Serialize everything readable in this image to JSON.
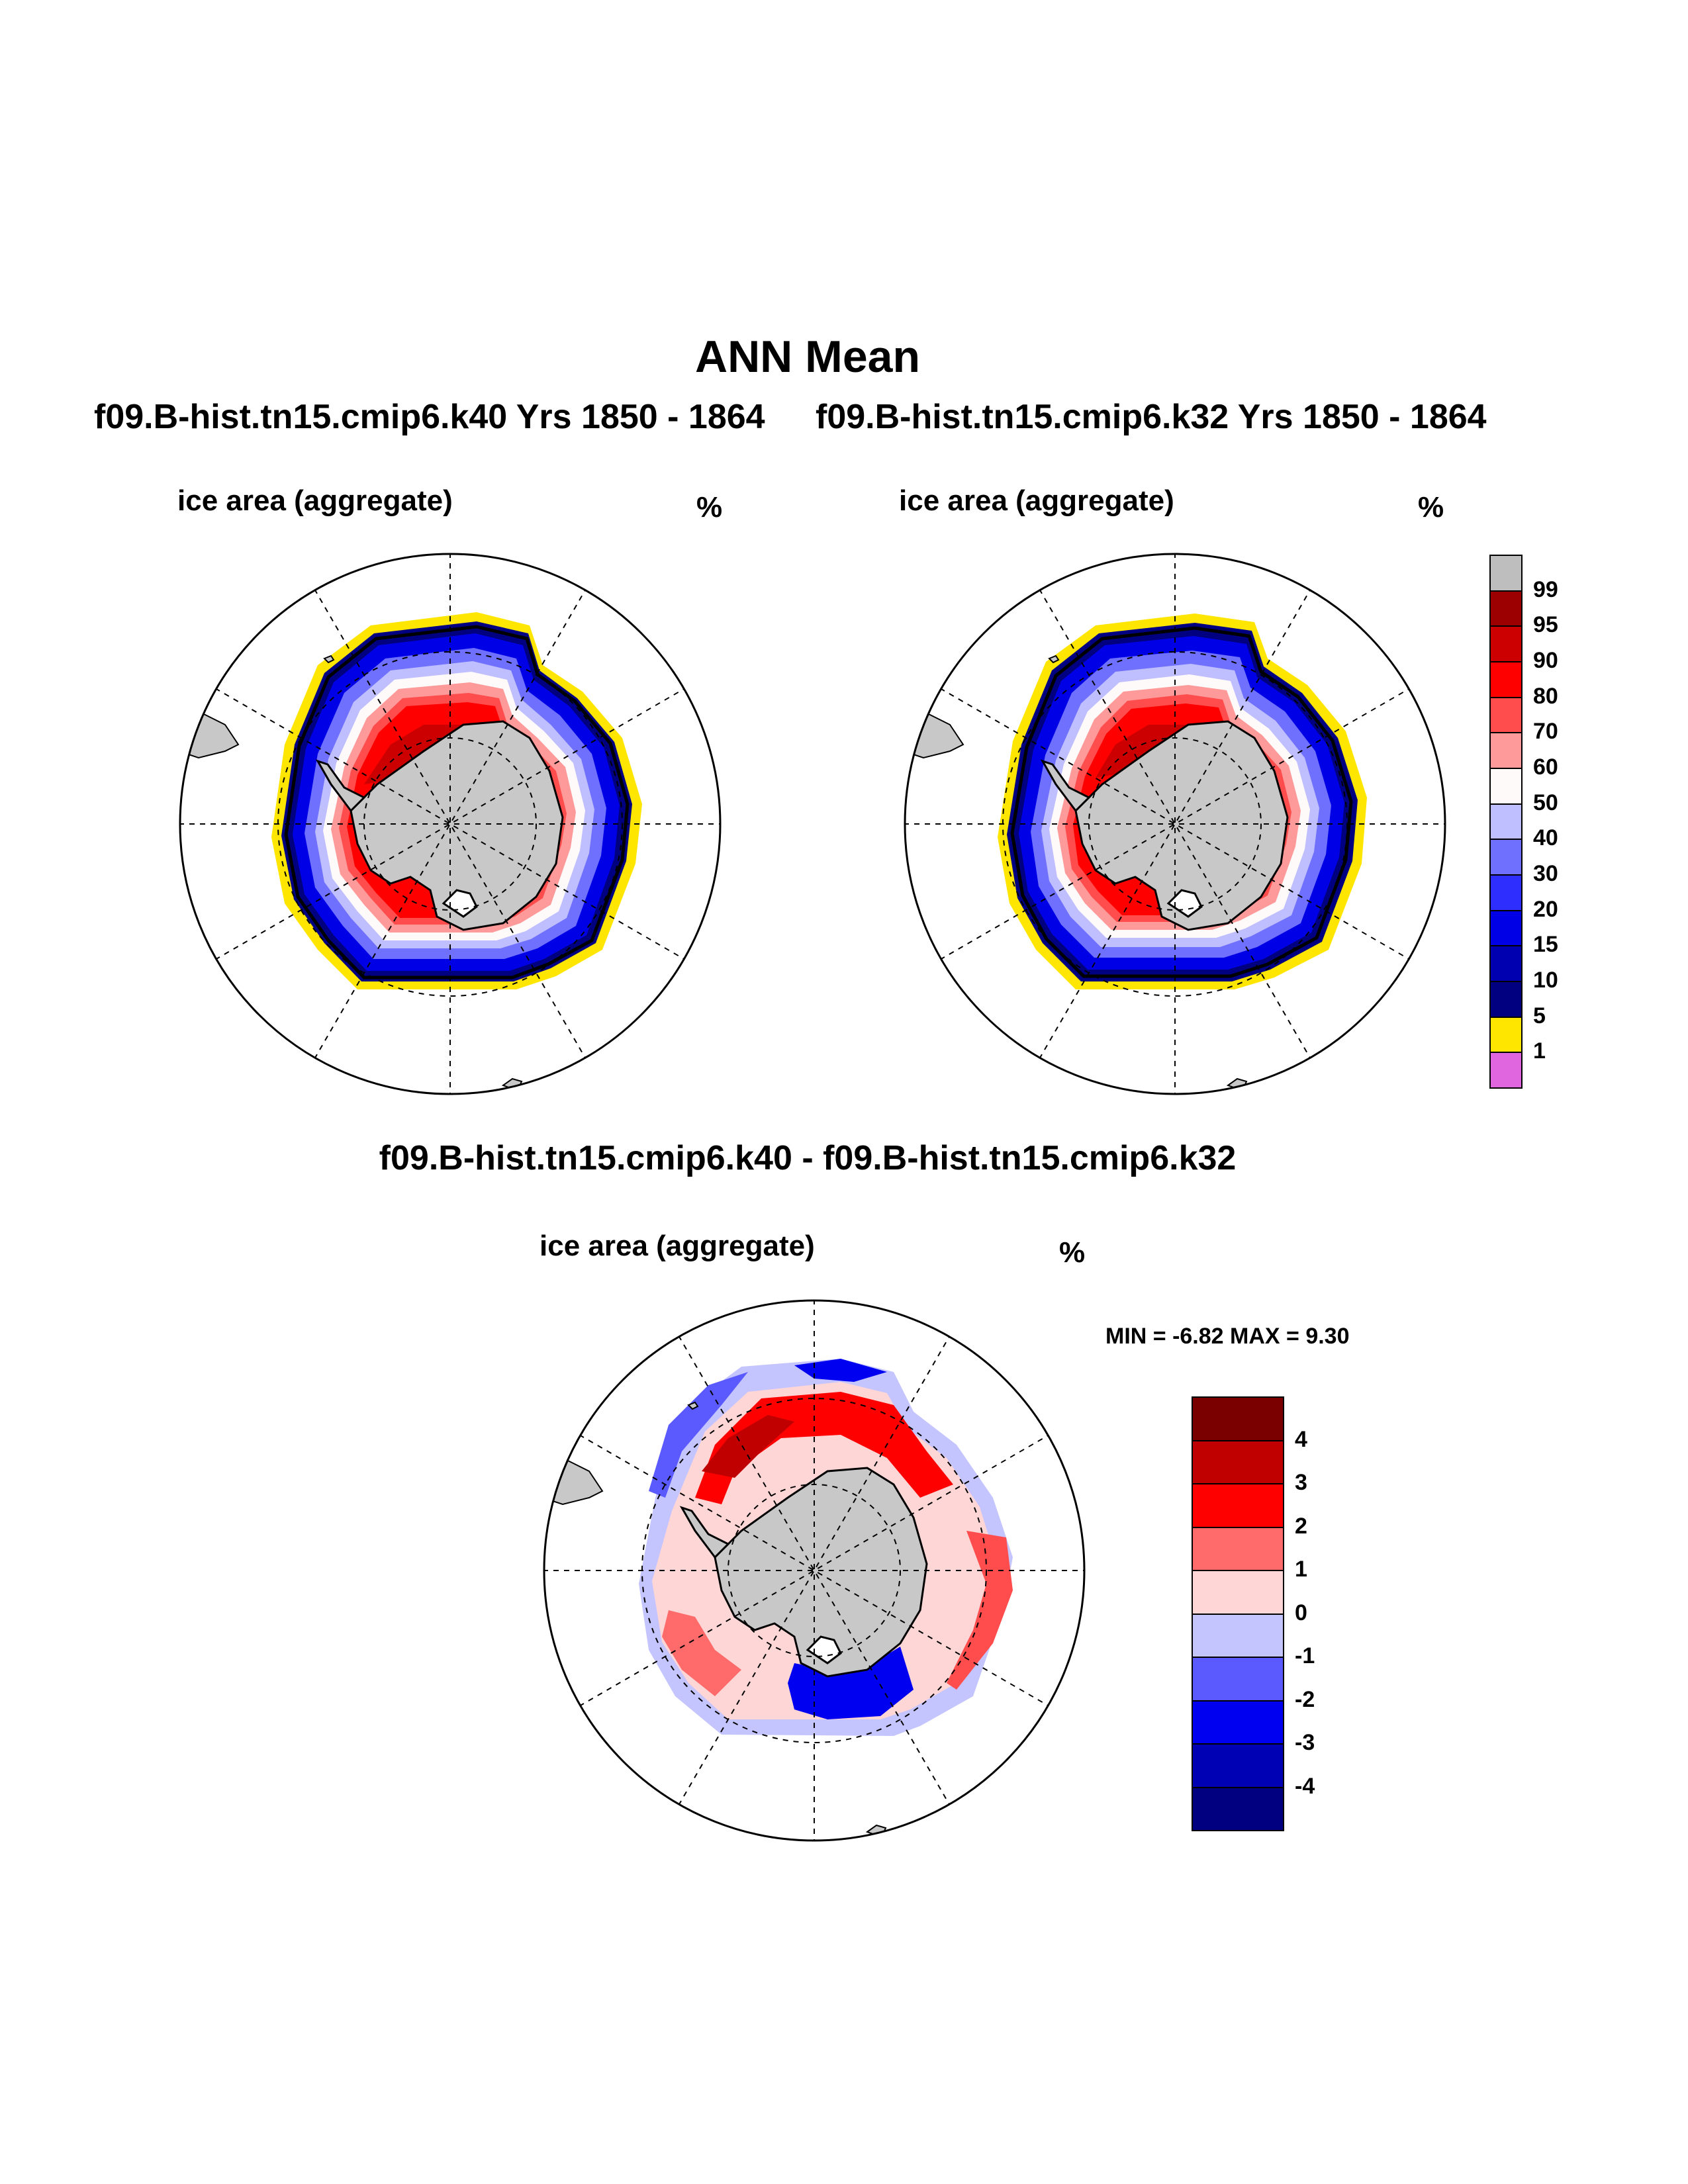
{
  "title": "ANN Mean",
  "runs": [
    {
      "label": "f09.B-hist.tn15.cmip6.k40  Yrs 1850 - 1864"
    },
    {
      "label": "f09.B-hist.tn15.cmip6.k32  Yrs 1850 - 1864"
    }
  ],
  "panels": [
    {
      "variable": "ice area  (aggregate)",
      "units": "%"
    },
    {
      "variable": "ice area  (aggregate)",
      "units": "%"
    },
    {
      "variable": "ice area  (aggregate)",
      "units": "%"
    }
  ],
  "difference_title": "f09.B-hist.tn15.cmip6.k40 - f09.B-hist.tn15.cmip6.k32",
  "stats": {
    "text": "MIN =  -6.82 MAX =   9.30"
  },
  "colorbar_abs": {
    "labels": [
      "99",
      "95",
      "90",
      "80",
      "70",
      "60",
      "50",
      "40",
      "30",
      "20",
      "15",
      "10",
      "5",
      "1"
    ],
    "colors": [
      "#bebebe",
      "#9c0000",
      "#cc0000",
      "#ff0000",
      "#ff4d4d",
      "#ff9a9a",
      "#fffafa",
      "#bfbfff",
      "#7070ff",
      "#2e2eff",
      "#0000e6",
      "#0000b0",
      "#000080",
      "#ffe600",
      "#e066e0"
    ]
  },
  "colorbar_diff": {
    "labels": [
      "4",
      "3",
      "2",
      "1",
      "0",
      "-1",
      "-2",
      "-3",
      "-4"
    ],
    "colors": [
      "#7a0000",
      "#c00000",
      "#ff0000",
      "#ff6a6a",
      "#ffd6d6",
      "#c4c4ff",
      "#5a5aff",
      "#0000f0",
      "#0000b4",
      "#000080"
    ]
  },
  "map_colors": {
    "land": "#c8c8c8",
    "ice_edge": "#000000",
    "background": "#ffffff"
  }
}
